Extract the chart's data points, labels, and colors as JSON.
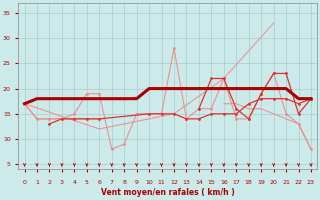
{
  "x": [
    0,
    1,
    2,
    3,
    4,
    5,
    6,
    7,
    8,
    9,
    10,
    11,
    12,
    13,
    14,
    15,
    16,
    17,
    18,
    19,
    20,
    21,
    22,
    23
  ],
  "dark_line": [
    17,
    18,
    18,
    18,
    18,
    18,
    18,
    18,
    18,
    18,
    20,
    20,
    20,
    20,
    20,
    20,
    20,
    20,
    20,
    20,
    20,
    20,
    18,
    18
  ],
  "med_line_dots": [
    null,
    null,
    13,
    14,
    14,
    14,
    14,
    null,
    null,
    null,
    15,
    15,
    15,
    14,
    14,
    15,
    15,
    15,
    17,
    18,
    18,
    18,
    17,
    18
  ],
  "light_upper_triangle": [
    17,
    null,
    null,
    null,
    null,
    null,
    12,
    null,
    null,
    null,
    null,
    null,
    15,
    null,
    null,
    null,
    22,
    null,
    null,
    null,
    33,
    null,
    null,
    null
  ],
  "light_lower_flat": [
    17,
    14,
    14,
    14,
    14,
    14,
    14,
    null,
    null,
    null,
    null,
    null,
    null,
    null,
    null,
    null,
    null,
    null,
    null,
    null,
    null,
    null,
    null,
    null
  ],
  "light_zigzag": [
    17,
    14,
    14,
    14,
    15,
    19,
    19,
    8,
    9,
    15,
    15,
    15,
    28,
    14,
    16,
    16,
    22,
    14,
    14,
    19,
    23,
    15,
    13,
    8
  ],
  "med_zigzag": [
    null,
    null,
    null,
    null,
    null,
    null,
    null,
    null,
    null,
    null,
    null,
    null,
    null,
    null,
    16,
    22,
    22,
    16,
    14,
    19,
    23,
    23,
    15,
    18
  ],
  "light_descend": [
    null,
    null,
    null,
    null,
    null,
    null,
    null,
    null,
    null,
    null,
    null,
    null,
    null,
    null,
    null,
    null,
    17,
    17,
    16,
    16,
    15,
    14,
    13,
    8
  ],
  "xlabel": "Vent moyen/en rafales ( km/h )",
  "yticks": [
    5,
    10,
    15,
    20,
    25,
    30,
    35
  ],
  "xticks": [
    0,
    1,
    2,
    3,
    4,
    5,
    6,
    7,
    8,
    9,
    10,
    11,
    12,
    13,
    14,
    15,
    16,
    17,
    18,
    19,
    20,
    21,
    22,
    23
  ],
  "bg_color": "#cceaea",
  "grid_color": "#aacccc",
  "dark_red": "#aa0000",
  "med_red": "#dd3333",
  "light_red": "#ee8888",
  "xlim": [
    -0.5,
    23.5
  ],
  "ylim": [
    4,
    37
  ]
}
